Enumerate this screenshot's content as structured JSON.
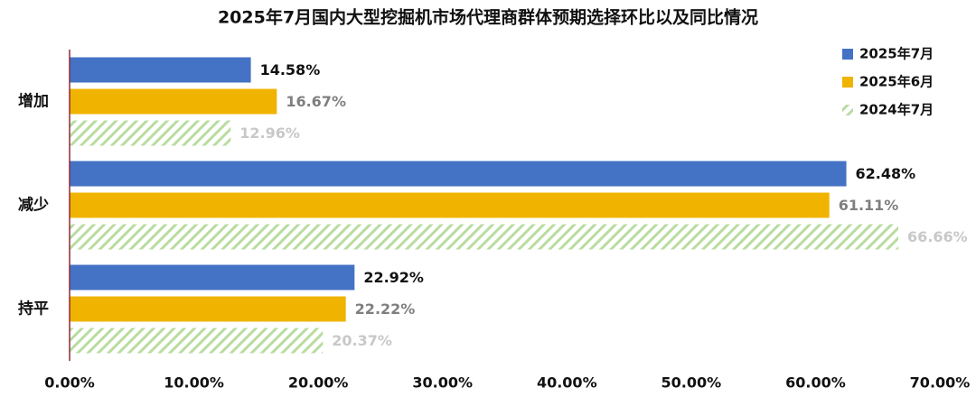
{
  "chart_data": {
    "type": "bar",
    "orientation": "horizontal",
    "title": "2025年7月国内大型挖掘机市场代理商群体预期选择环比以及同比情况",
    "categories": [
      "增加",
      "减少",
      "持平"
    ],
    "series": [
      {
        "name": "2025年7月",
        "color": "#4472c4",
        "values": [
          14.58,
          62.48,
          22.92
        ],
        "value_labels": [
          "14.58%",
          "62.48%",
          "22.92%"
        ]
      },
      {
        "name": "2025年6月",
        "color": "#f0b400",
        "values": [
          16.67,
          61.11,
          22.22
        ],
        "value_labels": [
          "16.67%",
          "61.11%",
          "22.22%"
        ]
      },
      {
        "name": "2024年7月",
        "color": "#b9dca0",
        "hatch": true,
        "values": [
          12.96,
          66.66,
          20.37
        ],
        "value_labels": [
          "12.96%",
          "66.66%",
          "20.37%"
        ]
      }
    ],
    "xlim": [
      0,
      70
    ],
    "xticks": [
      {
        "value": 0,
        "label": "0.00%"
      },
      {
        "value": 10,
        "label": "10.00%"
      },
      {
        "value": 20,
        "label": "20.00%"
      },
      {
        "value": 30,
        "label": "30.00%"
      },
      {
        "value": 40,
        "label": "40.00%"
      },
      {
        "value": 50,
        "label": "50.00%"
      },
      {
        "value": 60,
        "label": "60.00%"
      },
      {
        "value": 70,
        "label": "70.00%"
      }
    ],
    "grid": false,
    "legend": "upper right"
  }
}
